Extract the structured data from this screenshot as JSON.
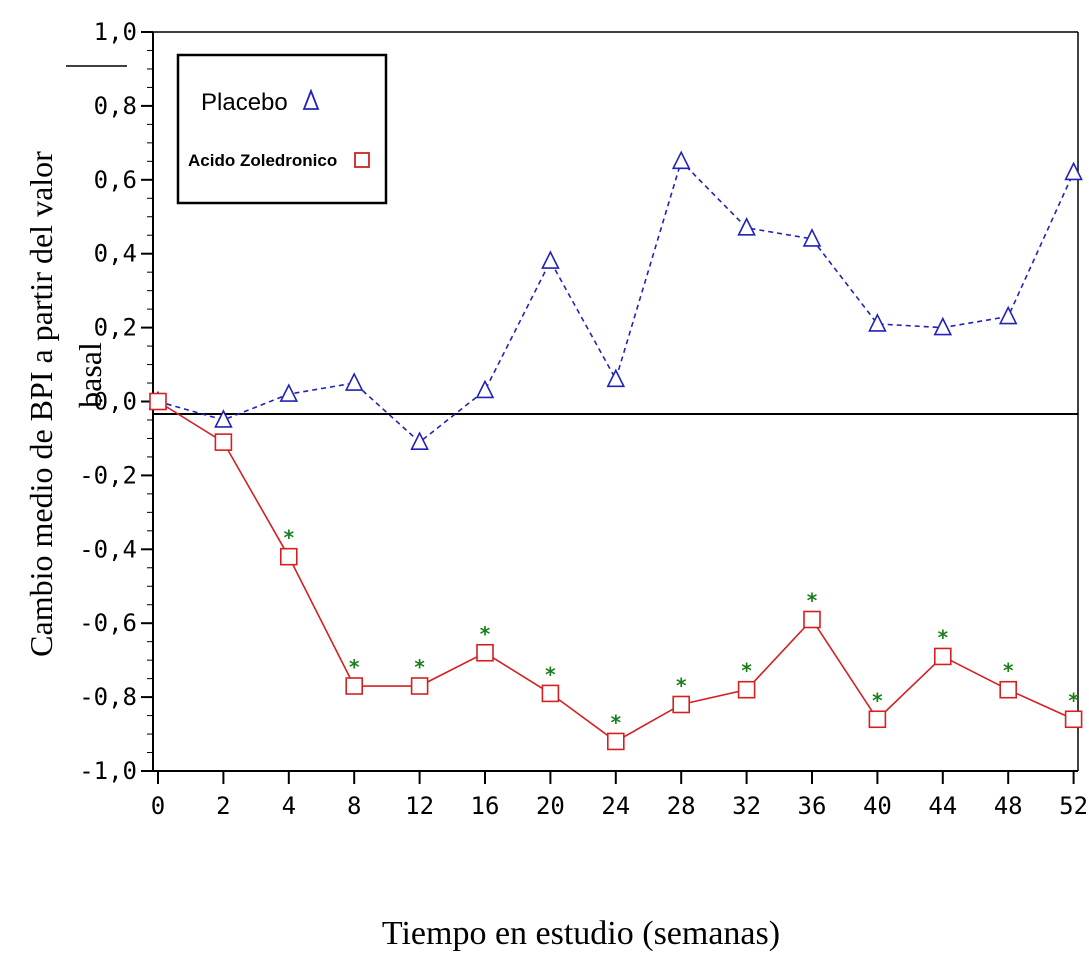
{
  "chart_data": {
    "type": "line",
    "categories": [
      "0",
      "2",
      "4",
      "8",
      "12",
      "16",
      "20",
      "24",
      "28",
      "32",
      "36",
      "40",
      "44",
      "48",
      "52"
    ],
    "series": [
      {
        "name": "Placebo",
        "marker": "triangle",
        "color": "#2222bb",
        "values": [
          0.0,
          -0.05,
          0.02,
          0.05,
          -0.11,
          0.03,
          0.38,
          0.06,
          0.65,
          0.47,
          0.44,
          0.21,
          0.2,
          0.23,
          0.62
        ]
      },
      {
        "name": "Acido Zoledronico",
        "marker": "square",
        "color": "#d42020",
        "values": [
          0.0,
          -0.11,
          -0.42,
          -0.77,
          -0.77,
          -0.68,
          -0.79,
          -0.92,
          -0.82,
          -0.78,
          -0.59,
          -0.86,
          -0.69,
          -0.78,
          -0.86
        ],
        "significant": [
          false,
          false,
          true,
          true,
          true,
          true,
          true,
          true,
          true,
          true,
          true,
          true,
          true,
          true,
          true
        ]
      }
    ],
    "significance_marker": "*",
    "significance_color": "#1a7f1a",
    "ylim": [
      -1.0,
      1.0
    ],
    "yticks": [
      1.0,
      0.8,
      0.6,
      0.4,
      0.2,
      0.0,
      -0.2,
      -0.4,
      -0.6,
      -0.8,
      -1.0
    ],
    "ytick_labels": [
      "1,0",
      "0,8",
      "0,6",
      "0,4",
      "0,2",
      "0,0",
      "-0,2",
      "-0,4",
      "-0,6",
      "-0,8",
      "-1,0"
    ],
    "ylabel_line1": "Cambio medio de BPI a partir del valor",
    "ylabel_line2": "basal",
    "xlabel": "Tiempo en estudio (semanas)",
    "legend": {
      "position": "top-left",
      "placebo_label": "Placebo",
      "zoledronic_label": "Acido Zoledronico"
    },
    "zero_line": true,
    "grid": false
  }
}
